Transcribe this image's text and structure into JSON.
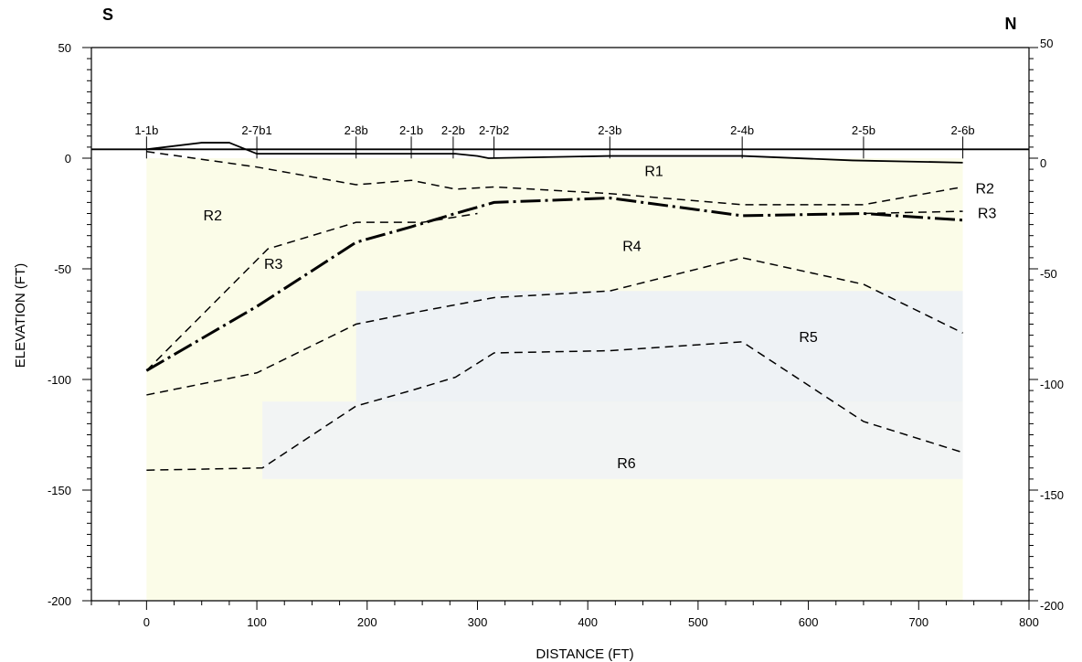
{
  "chart_data": {
    "type": "line",
    "title": "",
    "xlabel": "DISTANCE (FT)",
    "ylabel": "ELEVATION (FT)",
    "xlim": [
      -50,
      800
    ],
    "ylim": [
      -200,
      50
    ],
    "x_ticks": [
      0,
      100,
      200,
      300,
      400,
      500,
      600,
      700,
      800
    ],
    "y_ticks": [
      50,
      0,
      -50,
      -100,
      -150,
      -200
    ],
    "direction_left": "S",
    "direction_right": "N",
    "ground_line_elevation": 4,
    "ground_surface": {
      "x": [
        0,
        50,
        75,
        100,
        195,
        240,
        280,
        300,
        310,
        420,
        540,
        640,
        740
      ],
      "y": [
        4,
        7,
        7,
        2,
        2,
        2,
        2,
        1,
        0,
        1,
        1,
        -1,
        -2
      ]
    },
    "borings": [
      {
        "label": "1-1b",
        "x": 0
      },
      {
        "label": "2-7b1",
        "x": 100
      },
      {
        "label": "2-8b",
        "x": 190
      },
      {
        "label": "2-1b",
        "x": 240
      },
      {
        "label": "2-2b",
        "x": 278
      },
      {
        "label": "2-7b2",
        "x": 315
      },
      {
        "label": "2-3b",
        "x": 420
      },
      {
        "label": "2-4b",
        "x": 540
      },
      {
        "label": "2-5b",
        "x": 650
      },
      {
        "label": "2-6b",
        "x": 740
      }
    ],
    "series": [
      {
        "x": [
          0,
          100,
          190,
          240,
          280,
          315,
          420,
          540,
          650,
          740
        ],
        "y": [
          3,
          -4,
          -12,
          -10,
          -14,
          -13,
          -16,
          -21,
          -21,
          -13
        ]
      },
      {
        "x": [
          0,
          100,
          190,
          240,
          280,
          315,
          420,
          540,
          650,
          740
        ],
        "y": [
          -96,
          -67,
          -38,
          -31,
          -25,
          -20,
          -18,
          -26,
          -25,
          -28
        ]
      },
      {
        "x": [
          0,
          110,
          190,
          250,
          300
        ],
        "y": [
          -96,
          -41,
          -29,
          -29,
          -25
        ]
      },
      {
        "x": [
          650,
          740
        ],
        "y": [
          -25,
          -24
        ]
      },
      {
        "x": [
          0,
          100,
          190,
          240,
          315,
          420,
          540,
          650,
          740
        ],
        "y": [
          -107,
          -97,
          -75,
          -70,
          -63,
          -60,
          -45,
          -57,
          -79
        ]
      },
      {
        "x": [
          0,
          105,
          190,
          240,
          280,
          315,
          420,
          540,
          650,
          740
        ],
        "y": [
          -141,
          -140,
          -112,
          -105,
          -99,
          -88,
          -87,
          -83,
          -119,
          -133
        ]
      }
    ],
    "zone_labels": [
      {
        "text": "R1",
        "x": 460,
        "y": -8
      },
      {
        "text": "R2",
        "x": 60,
        "y": -28
      },
      {
        "text": "R2",
        "x": 760,
        "y": -16
      },
      {
        "text": "R3",
        "x": 115,
        "y": -50
      },
      {
        "text": "R3",
        "x": 762,
        "y": -27
      },
      {
        "text": "R4",
        "x": 440,
        "y": -42
      },
      {
        "text": "R5",
        "x": 600,
        "y": -83
      },
      {
        "text": "R6",
        "x": 435,
        "y": -140
      }
    ],
    "grid": false,
    "legend": "none"
  }
}
